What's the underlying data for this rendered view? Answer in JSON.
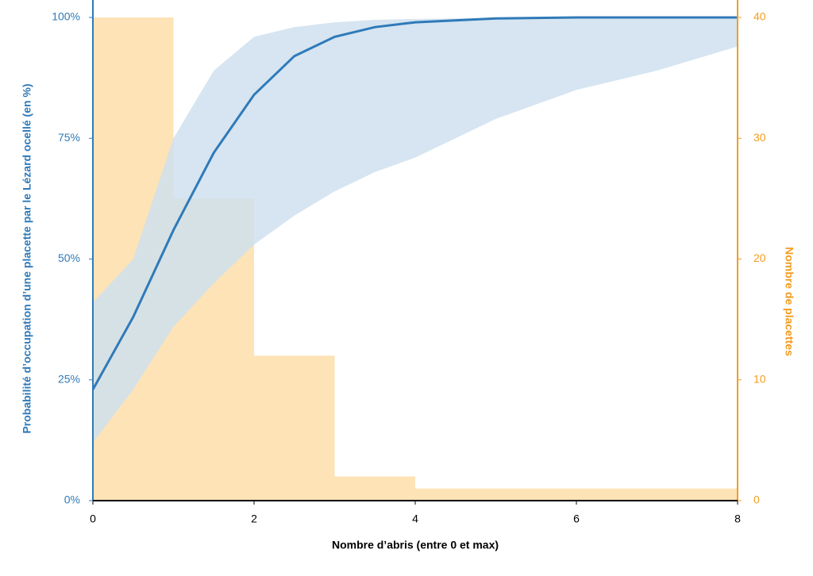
{
  "chart_data": {
    "type": "line-band-histogram",
    "xlabel": "Nombre d’abris (entre 0 et max)",
    "ylabel": "Probabilité d’occupation d’une placette par le Lézard ocellé (en %)",
    "y2label": "Nombre de placettes",
    "xlim": [
      0,
      8
    ],
    "xticks": [
      0,
      2,
      4,
      6,
      8
    ],
    "ylim": [
      0,
      100
    ],
    "yticks": [
      {
        "value": 0,
        "label": "0%"
      },
      {
        "value": 25,
        "label": "25%"
      },
      {
        "value": 50,
        "label": "50%"
      },
      {
        "value": 75,
        "label": "75%"
      },
      {
        "value": 100,
        "label": "100%"
      }
    ],
    "y2lim": [
      0,
      40
    ],
    "y2ticks": [
      0,
      10,
      20,
      30,
      40
    ],
    "x": [
      0,
      0.5,
      1,
      1.5,
      2,
      2.5,
      3,
      3.5,
      4,
      5,
      6,
      7,
      8
    ],
    "line": {
      "color": "#2f7ab9",
      "values": [
        23,
        38,
        56,
        72,
        84,
        92,
        96,
        98,
        99,
        99.8,
        100,
        100,
        100
      ]
    },
    "band": {
      "color": "#cfe1ef",
      "lower": [
        12,
        23,
        36,
        45,
        53,
        59,
        64,
        68,
        71,
        79,
        85,
        89,
        94
      ],
      "upper": [
        41,
        50,
        75,
        89,
        96,
        98,
        99,
        99.5,
        99.7,
        99.9,
        100,
        100,
        100
      ]
    },
    "histogram": {
      "color": "#fde3b6",
      "axis": "y2",
      "bins": [
        0,
        1,
        2,
        3,
        4,
        5,
        6,
        7,
        8
      ],
      "counts": [
        40,
        25,
        12,
        2,
        1,
        1,
        1,
        1
      ]
    },
    "y_color": "#2f7ab9",
    "y2_color": "#f39c1f"
  }
}
